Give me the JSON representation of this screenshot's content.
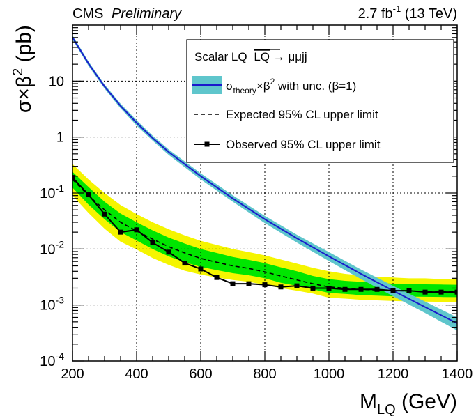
{
  "chart_data": {
    "type": "line",
    "header_left": {
      "experiment": "CMS",
      "status": "Preliminary"
    },
    "header_right": {
      "lumi": "2.7 fb",
      "lumi_exp": "-1",
      "energy": " (13 TeV)"
    },
    "xlabel": {
      "main": "M",
      "sub": "LQ",
      "unit": " (GeV)"
    },
    "ylabel": {
      "main": "σ×β",
      "sup": "2",
      "unit": " (pb)"
    },
    "xlim": [
      200,
      1400
    ],
    "ylim_log10": [
      -4,
      2
    ],
    "y_scale": "log",
    "grid": true,
    "x_ticks": [
      200,
      400,
      600,
      800,
      1000,
      1200,
      1400
    ],
    "x_tick_labels": [
      "200",
      "400",
      "600",
      "800",
      "1000",
      "1200",
      "1400"
    ],
    "y_ticks_log10": [
      -4,
      -3,
      -2,
      -1,
      0,
      1
    ],
    "y_tick_labels": [
      {
        "base": "10",
        "exp": "-4"
      },
      {
        "base": "10",
        "exp": "-3"
      },
      {
        "base": "10",
        "exp": "-2"
      },
      {
        "base": "10",
        "exp": "-1"
      },
      {
        "base": "1",
        "exp": ""
      },
      {
        "base": "10",
        "exp": ""
      }
    ],
    "legend": {
      "placement": "top-right",
      "title": "Scalar LQ",
      "title_overline": "LQ",
      "title_tail": " → μμjj",
      "entries": [
        {
          "key": "theory",
          "label_main": "σ",
          "label_sub": "theory",
          "label_tail": "×β",
          "label_sup": "2",
          "label_end": "  with unc. (β=1)"
        },
        {
          "key": "expected",
          "label": "Expected 95% CL upper limit"
        },
        {
          "key": "observed",
          "label": "Observed 95% CL upper limit"
        }
      ]
    },
    "colors": {
      "theory_line": "#1a1acc",
      "theory_band": "#5fc6cc",
      "band_1sigma": "#00e600",
      "band_2sigma": "#f5f500",
      "limit": "#000000"
    },
    "series": [
      {
        "name": "Theory σ×β² (β=1)",
        "x": [
          200,
          250,
          300,
          350,
          400,
          450,
          500,
          600,
          700,
          800,
          900,
          1000,
          1100,
          1200,
          1300,
          1400
        ],
        "y": [
          60.4,
          20.5,
          8.0,
          3.6,
          1.8,
          0.96,
          0.54,
          0.2,
          0.08,
          0.034,
          0.0155,
          0.0074,
          0.0036,
          0.0018,
          0.00092,
          0.00047
        ],
        "unc_lo": [
          55.0,
          18.6,
          7.3,
          3.25,
          1.6,
          0.86,
          0.48,
          0.175,
          0.07,
          0.029,
          0.013,
          0.0061,
          0.0029,
          0.00144,
          0.00072,
          0.00035
        ],
        "unc_hi": [
          66.0,
          22.4,
          8.7,
          3.95,
          2.0,
          1.06,
          0.6,
          0.225,
          0.091,
          0.039,
          0.018,
          0.0088,
          0.0043,
          0.0022,
          0.00115,
          0.0006
        ]
      },
      {
        "name": "Expected 95% CL upper limit",
        "x": [
          200,
          250,
          300,
          350,
          400,
          450,
          500,
          550,
          600,
          650,
          700,
          750,
          800,
          850,
          900,
          950,
          1000,
          1050,
          1100,
          1150,
          1200,
          1250,
          1300,
          1350,
          1400
        ],
        "y": [
          0.175,
          0.09,
          0.05,
          0.03,
          0.021,
          0.015,
          0.011,
          0.0085,
          0.0068,
          0.0058,
          0.005,
          0.0045,
          0.0039,
          0.0033,
          0.0028,
          0.0024,
          0.0021,
          0.002,
          0.0019,
          0.00185,
          0.0018,
          0.00178,
          0.00176,
          0.00175,
          0.00175
        ],
        "band1_lo": [
          0.125,
          0.062,
          0.034,
          0.02,
          0.0142,
          0.01,
          0.0074,
          0.0058,
          0.0048,
          0.0042,
          0.0037,
          0.0034,
          0.003,
          0.0025,
          0.0022,
          0.0019,
          0.00165,
          0.00158,
          0.0015,
          0.00147,
          0.00143,
          0.00141,
          0.0014,
          0.00139,
          0.00138
        ],
        "band1_hi": [
          0.24,
          0.128,
          0.07,
          0.043,
          0.03,
          0.0215,
          0.016,
          0.0125,
          0.01,
          0.0085,
          0.0072,
          0.0064,
          0.0056,
          0.0047,
          0.004,
          0.0033,
          0.0029,
          0.0027,
          0.0026,
          0.0025,
          0.0024,
          0.00237,
          0.00234,
          0.00232,
          0.0023
        ],
        "band2_lo": [
          0.09,
          0.044,
          0.023,
          0.0135,
          0.0098,
          0.0069,
          0.0052,
          0.0041,
          0.0035,
          0.0031,
          0.0028,
          0.0026,
          0.0023,
          0.002,
          0.0018,
          0.0016,
          0.00135,
          0.0013,
          0.00124,
          0.00121,
          0.00118,
          0.00116,
          0.00115,
          0.00114,
          0.00113
        ],
        "band2_hi": [
          0.33,
          0.175,
          0.1,
          0.061,
          0.042,
          0.03,
          0.0225,
          0.0175,
          0.014,
          0.0118,
          0.01,
          0.0088,
          0.0077,
          0.0065,
          0.0055,
          0.0046,
          0.004,
          0.0036,
          0.0034,
          0.0032,
          0.0031,
          0.003,
          0.003,
          0.0029,
          0.0029
        ]
      },
      {
        "name": "Observed 95% CL upper limit",
        "x": [
          200,
          250,
          300,
          350,
          400,
          450,
          500,
          550,
          600,
          650,
          700,
          750,
          800,
          850,
          900,
          950,
          1000,
          1050,
          1100,
          1150,
          1200,
          1250,
          1300,
          1350,
          1400
        ],
        "y": [
          0.19,
          0.093,
          0.042,
          0.02,
          0.022,
          0.013,
          0.0088,
          0.0056,
          0.0044,
          0.0031,
          0.0024,
          0.0024,
          0.0023,
          0.0021,
          0.0022,
          0.002,
          0.002,
          0.0019,
          0.0019,
          0.0019,
          0.0018,
          0.0018,
          0.0017,
          0.0017,
          0.0017
        ]
      }
    ]
  }
}
